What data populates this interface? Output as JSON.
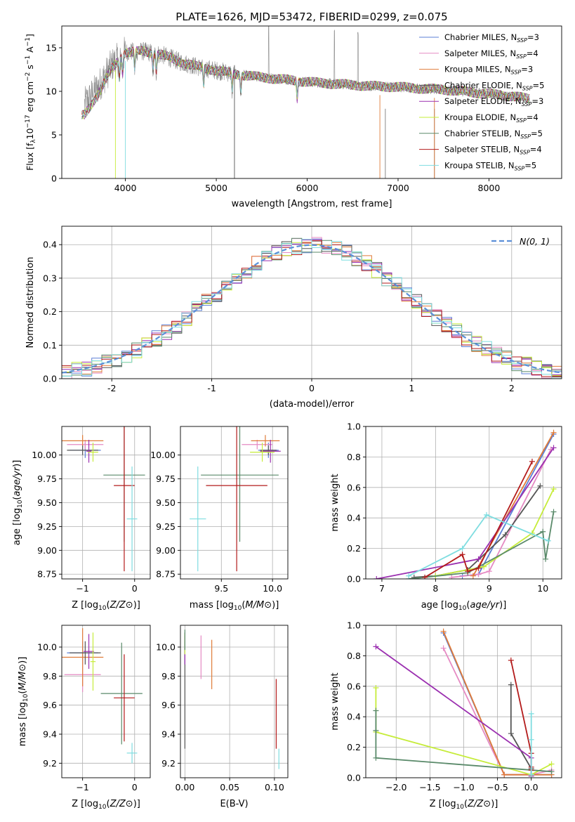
{
  "figure_title": "PLATE=1626, MJD=53472, FIBERID=0299, z=0.075",
  "colors": {
    "Chabrier MILES": "#5b7fd6",
    "Salpeter MILES": "#e58ac3",
    "Kroupa MILES": "#e07b39",
    "Chabrier ELODIE": "#555555",
    "Salpeter ELODIE": "#9b30b0",
    "Kroupa ELODIE": "#c6ec3a",
    "Chabrier STELIB": "#5a8a6a",
    "Salpeter STELIB": "#b31b1b",
    "Kroupa STELIB": "#7fdde0",
    "data": "#8a8a8a",
    "gaussian": "#5b8fd8",
    "grid": "#b0b0b0"
  },
  "chart_data": [
    {
      "id": "spectrum",
      "type": "line",
      "title": "PLATE=1626, MJD=53472, FIBERID=0299, z=0.075",
      "xlabel": "wavelength [Angstrom, rest frame]",
      "ylabel": "Flux [f_λ 10^-17 erg cm^-2 s^-1 A^-1]",
      "xlim": [
        3300,
        8800
      ],
      "ylim": [
        0,
        17.5
      ],
      "xticks": [
        4000,
        5000,
        6000,
        7000,
        8000
      ],
      "yticks": [
        0,
        5,
        10,
        15
      ],
      "grid": false,
      "legend_position": "top-right",
      "legend": [
        {
          "model": "Chabrier MILES",
          "label": "Chabrier MILES, N",
          "sub": "SSP",
          "eq": "=3"
        },
        {
          "model": "Salpeter MILES",
          "label": "Salpeter MILES, N",
          "sub": "SSP",
          "eq": "=4"
        },
        {
          "model": "Kroupa MILES",
          "label": "Kroupa MILES, N",
          "sub": "SSP",
          "eq": "=3"
        },
        {
          "model": "Chabrier ELODIE",
          "label": "Chabrier ELODIE, N",
          "sub": "SSP",
          "eq": "=5"
        },
        {
          "model": "Salpeter ELODIE",
          "label": "Salpeter ELODIE, N",
          "sub": "SSP",
          "eq": "=3"
        },
        {
          "model": "Kroupa ELODIE",
          "label": "Kroupa ELODIE, N",
          "sub": "SSP",
          "eq": "=4"
        },
        {
          "model": "Chabrier STELIB",
          "label": "Chabrier STELIB, N",
          "sub": "SSP",
          "eq": "=5"
        },
        {
          "model": "Salpeter STELIB",
          "label": "Salpeter STELIB, N",
          "sub": "SSP",
          "eq": "=4"
        },
        {
          "model": "Kroupa STELIB",
          "label": "Kroupa STELIB, N",
          "sub": "SSP",
          "eq": "=5"
        }
      ],
      "continuum": {
        "x": [
          3550,
          3700,
          3850,
          4000,
          4200,
          4400,
          4600,
          4800,
          5000,
          5200,
          5500,
          5800,
          6100,
          6400,
          6700,
          7000,
          7300,
          7500,
          7700,
          8000,
          8300,
          8500
        ],
        "y": [
          8.5,
          10.5,
          13.0,
          14.5,
          14.6,
          14.2,
          13.4,
          12.8,
          12.4,
          12.0,
          11.6,
          11.3,
          11.0,
          10.8,
          10.6,
          10.5,
          10.3,
          10.2,
          10.0,
          9.7,
          9.4,
          9.0
        ]
      },
      "model_x_range": [
        3520,
        8450
      ],
      "data_x_range": [
        3550,
        8400
      ]
    },
    {
      "id": "residuals",
      "type": "line",
      "xlabel": "(data-model)/error",
      "ylabel": "Normed distribution",
      "xlim": [
        -2.5,
        2.5
      ],
      "ylim": [
        0,
        0.455
      ],
      "xticks": [
        -2,
        -1,
        0,
        1,
        2
      ],
      "yticks": [
        0.0,
        0.1,
        0.2,
        0.3,
        0.4
      ],
      "grid": true,
      "legend_position": "top-right",
      "gaussian_label": "N(0, 1)",
      "bin_width": 0.1,
      "histogram_series": 9
    },
    {
      "id": "age_vs_Z",
      "type": "scatter",
      "xlabel": "Z [log10(Z/Z⊙)]",
      "ylabel": "age [log10(age/yr)]",
      "xlim": [
        -1.4,
        0.3
      ],
      "ylim": [
        8.7,
        10.3
      ],
      "xticks": [
        -1,
        0
      ],
      "yticks": [
        8.75,
        9.0,
        9.25,
        9.5,
        9.75,
        10.0
      ],
      "grid": true,
      "points": [
        {
          "model": "Chabrier MILES",
          "x": -0.95,
          "y": 10.05,
          "xerr": 0.3,
          "yerr": 0.08
        },
        {
          "model": "Salpeter MILES",
          "x": -0.95,
          "y": 10.11,
          "xerr": 0.35,
          "yerr": 0.05
        },
        {
          "model": "Kroupa MILES",
          "x": -1.0,
          "y": 10.15,
          "xerr": 0.4,
          "yerr": 0.06
        },
        {
          "model": "Chabrier ELODIE",
          "x": -1.0,
          "y": 10.05,
          "xerr": 0.3,
          "yerr": 0.05
        },
        {
          "model": "Salpeter ELODIE",
          "x": -0.88,
          "y": 10.04,
          "xerr": 0.05,
          "yerr": 0.12
        },
        {
          "model": "Kroupa ELODIE",
          "x": -0.8,
          "y": 10.03,
          "xerr": 0.1,
          "yerr": 0.1
        },
        {
          "model": "Chabrier STELIB",
          "x": -0.2,
          "y": 9.79,
          "xerr": 0.4,
          "yerr": 0.7
        },
        {
          "model": "Salpeter STELIB",
          "x": -0.2,
          "y": 9.68,
          "xerr": 0.2,
          "yerr": 0.9
        },
        {
          "model": "Kroupa STELIB",
          "x": -0.05,
          "y": 9.33,
          "xerr": 0.1,
          "yerr": 0.55
        }
      ]
    },
    {
      "id": "age_vs_mass",
      "type": "scatter",
      "xlabel": "mass [log10(M/M⊙)]",
      "ylabel": "",
      "xlim": [
        9.1,
        10.15
      ],
      "ylim": [
        8.7,
        10.3
      ],
      "xticks": [
        9.5,
        10.0
      ],
      "yticks": [
        8.75,
        9.0,
        9.25,
        9.5,
        9.75,
        10.0
      ],
      "grid": true,
      "points": [
        {
          "model": "Chabrier MILES",
          "x": 9.96,
          "y": 10.05,
          "xerr": 0.1,
          "yerr": 0.08
        },
        {
          "model": "Salpeter MILES",
          "x": 9.85,
          "y": 10.11,
          "xerr": 0.15,
          "yerr": 0.05
        },
        {
          "model": "Kroupa MILES",
          "x": 9.93,
          "y": 10.15,
          "xerr": 0.14,
          "yerr": 0.06
        },
        {
          "model": "Chabrier ELODIE",
          "x": 9.96,
          "y": 10.05,
          "xerr": 0.08,
          "yerr": 0.05
        },
        {
          "model": "Salpeter ELODIE",
          "x": 9.98,
          "y": 10.04,
          "xerr": 0.1,
          "yerr": 0.12
        },
        {
          "model": "Kroupa ELODIE",
          "x": 9.9,
          "y": 10.03,
          "xerr": 0.12,
          "yerr": 0.1
        },
        {
          "model": "Chabrier STELIB",
          "x": 9.68,
          "y": 9.79,
          "xerr": 0.38,
          "yerr": 0.7
        },
        {
          "model": "Salpeter STELIB",
          "x": 9.65,
          "y": 9.68,
          "xerr": 0.3,
          "yerr": 0.9
        },
        {
          "model": "Kroupa STELIB",
          "x": 9.27,
          "y": 9.33,
          "xerr": 0.08,
          "yerr": 0.55
        }
      ]
    },
    {
      "id": "mass_vs_Z",
      "type": "scatter",
      "xlabel": "Z [log10(Z/Z⊙)]",
      "ylabel": "mass [log10(M/M⊙)]",
      "xlim": [
        -1.4,
        0.3
      ],
      "ylim": [
        9.1,
        10.15
      ],
      "xticks": [
        -1,
        0
      ],
      "yticks": [
        9.2,
        9.4,
        9.6,
        9.8,
        10.0
      ],
      "grid": true,
      "points": [
        {
          "model": "Chabrier MILES",
          "x": -1.0,
          "y": 9.96,
          "xerr": 0.3,
          "yerr": 0.08
        },
        {
          "model": "Salpeter MILES",
          "x": -1.0,
          "y": 9.81,
          "xerr": 0.35,
          "yerr": 0.12
        },
        {
          "model": "Kroupa MILES",
          "x": -1.0,
          "y": 9.93,
          "xerr": 0.4,
          "yerr": 0.2
        },
        {
          "model": "Chabrier ELODIE",
          "x": -0.95,
          "y": 9.96,
          "xerr": 0.3,
          "yerr": 0.08
        },
        {
          "model": "Salpeter ELODIE",
          "x": -0.88,
          "y": 9.97,
          "xerr": 0.1,
          "yerr": 0.12
        },
        {
          "model": "Kroupa ELODIE",
          "x": -0.8,
          "y": 9.9,
          "xerr": 0.05,
          "yerr": 0.2
        },
        {
          "model": "Chabrier STELIB",
          "x": -0.25,
          "y": 9.68,
          "xerr": 0.4,
          "yerr": 0.35
        },
        {
          "model": "Salpeter STELIB",
          "x": -0.2,
          "y": 9.65,
          "xerr": 0.2,
          "yerr": 0.3
        },
        {
          "model": "Kroupa STELIB",
          "x": -0.05,
          "y": 9.27,
          "xerr": 0.1,
          "yerr": 0.07
        }
      ]
    },
    {
      "id": "mass_vs_EBV",
      "type": "scatter",
      "xlabel": "E(B-V)",
      "ylabel": "",
      "xlim": [
        -0.005,
        0.115
      ],
      "ylim": [
        9.1,
        10.15
      ],
      "xticks": [
        0.0,
        0.05,
        0.1
      ],
      "yticks": [
        9.2,
        9.4,
        9.6,
        9.8,
        10.0
      ],
      "grid": true,
      "points": [
        {
          "model": "Chabrier MILES",
          "x": 0.0,
          "y": 9.96,
          "xerr": 0.0,
          "yerr": 0.08
        },
        {
          "model": "Salpeter MILES",
          "x": 0.018,
          "y": 9.93,
          "xerr": 0.0,
          "yerr": 0.15
        },
        {
          "model": "Kroupa MILES",
          "x": 0.03,
          "y": 9.88,
          "xerr": 0.0,
          "yerr": 0.17
        },
        {
          "model": "Chabrier ELODIE",
          "x": 0.0,
          "y": 9.7,
          "xerr": 0.0,
          "yerr": 0.4
        },
        {
          "model": "Salpeter ELODIE",
          "x": 0.0,
          "y": 9.98,
          "xerr": 0.0,
          "yerr": 0.1
        },
        {
          "model": "Kroupa ELODIE",
          "x": 0.0,
          "y": 10.02,
          "xerr": 0.0,
          "yerr": 0.07
        },
        {
          "model": "Chabrier STELIB",
          "x": 0.0,
          "y": 10.05,
          "xerr": 0.0,
          "yerr": 0.07
        },
        {
          "model": "Salpeter STELIB",
          "x": 0.102,
          "y": 9.54,
          "xerr": 0.0,
          "yerr": 0.24
        },
        {
          "model": "Kroupa STELIB",
          "x": 0.105,
          "y": 9.23,
          "xerr": 0.0,
          "yerr": 0.07
        }
      ]
    },
    {
      "id": "weight_vs_age",
      "type": "line",
      "xlabel": "age [log10(age/yr)]",
      "ylabel": "mass weight",
      "xlim": [
        6.7,
        10.35
      ],
      "ylim": [
        0,
        1.0
      ],
      "xticks": [
        7,
        8,
        9,
        10
      ],
      "yticks": [
        0.0,
        0.2,
        0.4,
        0.6,
        0.8,
        1.0
      ],
      "grid": true,
      "series": [
        {
          "model": "Chabrier MILES",
          "x": [
            8.5,
            8.8,
            10.2
          ],
          "y": [
            0.02,
            0.03,
            0.95
          ]
        },
        {
          "model": "Salpeter MILES",
          "x": [
            8.3,
            8.8,
            9.0,
            10.15
          ],
          "y": [
            0.01,
            0.03,
            0.05,
            0.85
          ]
        },
        {
          "model": "Kroupa MILES",
          "x": [
            8.7,
            10.2
          ],
          "y": [
            0.02,
            0.96
          ]
        },
        {
          "model": "Chabrier ELODIE",
          "x": [
            7.6,
            8.0,
            8.6,
            9.3,
            9.95
          ],
          "y": [
            0.01,
            0.02,
            0.06,
            0.29,
            0.61
          ]
        },
        {
          "model": "Salpeter ELODIE",
          "x": [
            6.9,
            8.8,
            10.2
          ],
          "y": [
            0.0,
            0.13,
            0.86
          ]
        },
        {
          "model": "Kroupa ELODIE",
          "x": [
            8.0,
            8.9,
            9.8,
            10.2
          ],
          "y": [
            0.02,
            0.08,
            0.3,
            0.59
          ]
        },
        {
          "model": "Chabrier STELIB",
          "x": [
            7.5,
            8.6,
            10.0,
            10.05,
            10.2
          ],
          "y": [
            0.0,
            0.04,
            0.31,
            0.13,
            0.44
          ]
        },
        {
          "model": "Salpeter STELIB",
          "x": [
            7.8,
            8.5,
            8.6,
            8.8,
            9.8
          ],
          "y": [
            0.01,
            0.16,
            0.05,
            0.07,
            0.77
          ]
        },
        {
          "model": "Kroupa STELIB",
          "x": [
            7.5,
            8.5,
            8.95,
            10.1
          ],
          "y": [
            0.02,
            0.2,
            0.42,
            0.25
          ]
        }
      ]
    },
    {
      "id": "weight_vs_Z",
      "type": "line",
      "xlabel": "Z [log10(Z/Z⊙)]",
      "ylabel": "mass weight",
      "xlim": [
        -2.45,
        0.45
      ],
      "ylim": [
        0,
        1.0
      ],
      "xticks": [
        -2.0,
        -1.5,
        -1.0,
        -0.5,
        0.0
      ],
      "yticks": [
        0.0,
        0.2,
        0.4,
        0.6,
        0.8,
        1.0
      ],
      "grid": true,
      "series": [
        {
          "model": "Chabrier MILES",
          "x": [
            -1.3,
            -0.4,
            0.0,
            0.3
          ],
          "y": [
            0.95,
            0.02,
            0.02,
            0.02
          ]
        },
        {
          "model": "Salpeter MILES",
          "x": [
            -1.3,
            -0.4,
            0.0,
            0.3
          ],
          "y": [
            0.85,
            0.02,
            0.02,
            0.05
          ]
        },
        {
          "model": "Kroupa MILES",
          "x": [
            -1.3,
            -0.4,
            0.3
          ],
          "y": [
            0.96,
            0.02,
            0.02
          ]
        },
        {
          "model": "Chabrier ELODIE",
          "x": [
            -0.3,
            -0.3,
            0.0,
            0.0
          ],
          "y": [
            0.61,
            0.29,
            0.06,
            0.02
          ]
        },
        {
          "model": "Salpeter ELODIE",
          "x": [
            -2.3,
            0.0,
            0.0
          ],
          "y": [
            0.86,
            0.13,
            0.01
          ]
        },
        {
          "model": "Kroupa ELODIE",
          "x": [
            -2.3,
            -2.3,
            0.0,
            0.3
          ],
          "y": [
            0.59,
            0.3,
            0.02,
            0.09
          ]
        },
        {
          "model": "Chabrier STELIB",
          "x": [
            -2.3,
            -2.3,
            -2.3,
            0.3
          ],
          "y": [
            0.44,
            0.31,
            0.13,
            0.04
          ]
        },
        {
          "model": "Salpeter STELIB",
          "x": [
            -0.3,
            0.0,
            0.0,
            0.0
          ],
          "y": [
            0.77,
            0.16,
            0.07,
            0.05
          ]
        },
        {
          "model": "Kroupa STELIB",
          "x": [
            0.0,
            0.0,
            0.0
          ],
          "y": [
            0.42,
            0.25,
            0.02
          ]
        }
      ]
    }
  ]
}
